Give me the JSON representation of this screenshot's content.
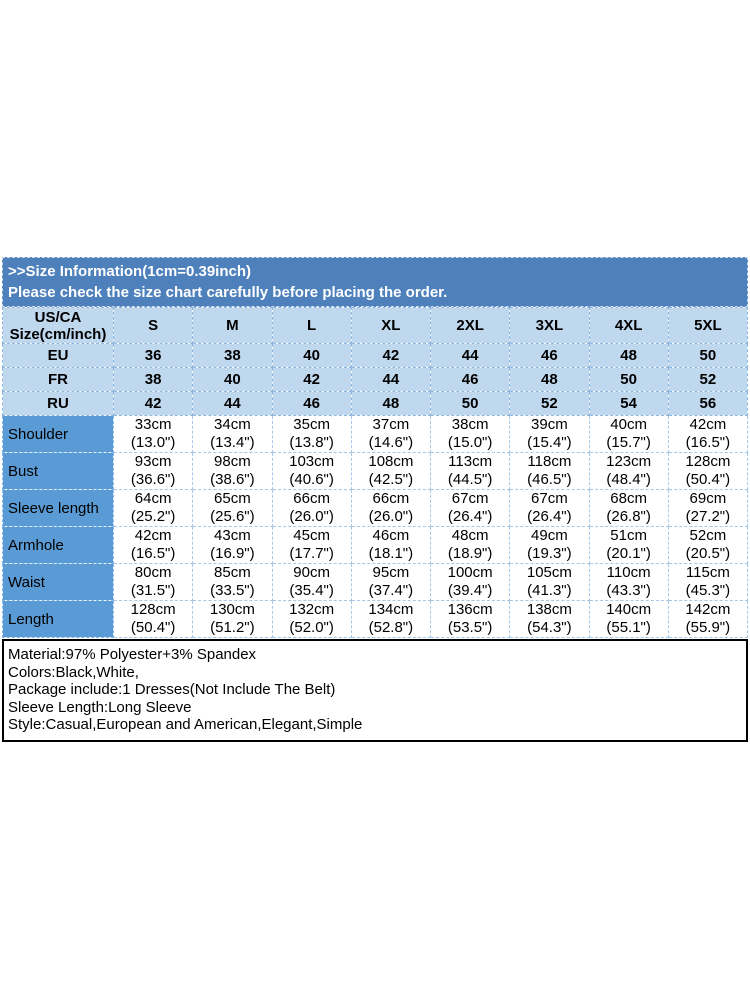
{
  "banner": {
    "title": ">>Size Information(1cm=0.39inch)",
    "subtitle": "Please check the size chart carefully before placing the order."
  },
  "colors": {
    "banner_bg": "#4e80bc",
    "banner_text": "#ffffff",
    "header_bg": "#bfd8ee",
    "label_bg": "#5b9bd5",
    "grid_blue": "#8fb6dc",
    "grid_light": "#a4c8e6",
    "info_border": "#000000"
  },
  "size_table": {
    "corner_line1": "US/CA",
    "corner_line2": "Size(cm/inch)",
    "size_columns": [
      "S",
      "M",
      "L",
      "XL",
      "2XL",
      "3XL",
      "4XL",
      "5XL"
    ],
    "region_rows": [
      {
        "label": "EU",
        "values": [
          "36",
          "38",
          "40",
          "42",
          "44",
          "46",
          "48",
          "50"
        ]
      },
      {
        "label": "FR",
        "values": [
          "38",
          "40",
          "42",
          "44",
          "46",
          "48",
          "50",
          "52"
        ]
      },
      {
        "label": "RU",
        "values": [
          "42",
          "44",
          "46",
          "48",
          "50",
          "52",
          "54",
          "56"
        ]
      }
    ],
    "measurement_rows": [
      {
        "label": "Shoulder",
        "cells": [
          [
            "33cm",
            "(13.0\")"
          ],
          [
            "34cm",
            "(13.4\")"
          ],
          [
            "35cm",
            "(13.8\")"
          ],
          [
            "37cm",
            "(14.6\")"
          ],
          [
            "38cm",
            "(15.0\")"
          ],
          [
            "39cm",
            "(15.4\")"
          ],
          [
            "40cm",
            "(15.7\")"
          ],
          [
            "42cm",
            "(16.5\")"
          ]
        ]
      },
      {
        "label": "Bust",
        "cells": [
          [
            "93cm",
            "(36.6\")"
          ],
          [
            "98cm",
            "(38.6\")"
          ],
          [
            "103cm",
            "(40.6\")"
          ],
          [
            "108cm",
            "(42.5\")"
          ],
          [
            "113cm",
            "(44.5\")"
          ],
          [
            "118cm",
            "(46.5\")"
          ],
          [
            "123cm",
            "(48.4\")"
          ],
          [
            "128cm",
            "(50.4\")"
          ]
        ]
      },
      {
        "label": "Sleeve length",
        "cells": [
          [
            "64cm",
            "(25.2\")"
          ],
          [
            "65cm",
            "(25.6\")"
          ],
          [
            "66cm",
            "(26.0\")"
          ],
          [
            "66cm",
            "(26.0\")"
          ],
          [
            "67cm",
            "(26.4\")"
          ],
          [
            "67cm",
            "(26.4\")"
          ],
          [
            "68cm",
            "(26.8\")"
          ],
          [
            "69cm",
            "(27.2\")"
          ]
        ]
      },
      {
        "label": "Armhole",
        "cells": [
          [
            "42cm",
            "(16.5\")"
          ],
          [
            "43cm",
            "(16.9\")"
          ],
          [
            "45cm",
            "(17.7\")"
          ],
          [
            "46cm",
            "(18.1\")"
          ],
          [
            "48cm",
            "(18.9\")"
          ],
          [
            "49cm",
            "(19.3\")"
          ],
          [
            "51cm",
            "(20.1\")"
          ],
          [
            "52cm",
            "(20.5\")"
          ]
        ]
      },
      {
        "label": "Waist",
        "cells": [
          [
            "80cm",
            "(31.5\")"
          ],
          [
            "85cm",
            "(33.5\")"
          ],
          [
            "90cm",
            "(35.4\")"
          ],
          [
            "95cm",
            "(37.4\")"
          ],
          [
            "100cm",
            "(39.4\")"
          ],
          [
            "105cm",
            "(41.3\")"
          ],
          [
            "110cm",
            "(43.3\")"
          ],
          [
            "115cm",
            "(45.3\")"
          ]
        ]
      },
      {
        "label": "Length",
        "cells": [
          [
            "128cm",
            "(50.4\")"
          ],
          [
            "130cm",
            "(51.2\")"
          ],
          [
            "132cm",
            "(52.0\")"
          ],
          [
            "134cm",
            "(52.8\")"
          ],
          [
            "136cm",
            "(53.5\")"
          ],
          [
            "138cm",
            "(54.3\")"
          ],
          [
            "140cm",
            "(55.1\")"
          ],
          [
            "142cm",
            "(55.9\")"
          ]
        ]
      }
    ]
  },
  "product_info": {
    "lines": [
      "Material:97% Polyester+3% Spandex",
      "Colors:Black,White,",
      "Package include:1 Dresses(Not Include The Belt)",
      "Sleeve Length:Long Sleeve",
      "Style:Casual,European and American,Elegant,Simple"
    ]
  }
}
